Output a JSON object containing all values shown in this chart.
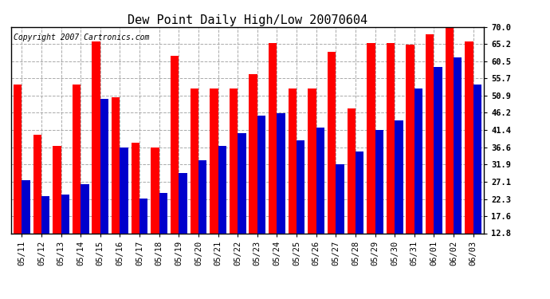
{
  "title": "Dew Point Daily High/Low 20070604",
  "copyright": "Copyright 2007 Cartronics.com",
  "dates": [
    "05/11",
    "05/12",
    "05/13",
    "05/14",
    "05/15",
    "05/16",
    "05/17",
    "05/18",
    "05/19",
    "05/20",
    "05/21",
    "05/22",
    "05/23",
    "05/24",
    "05/25",
    "05/26",
    "05/27",
    "05/28",
    "05/29",
    "05/30",
    "05/31",
    "06/01",
    "06/02",
    "06/03"
  ],
  "highs": [
    54.0,
    40.0,
    37.0,
    54.0,
    66.0,
    50.5,
    38.0,
    36.5,
    62.0,
    53.0,
    53.0,
    53.0,
    57.0,
    65.5,
    53.0,
    53.0,
    63.0,
    47.5,
    65.5,
    65.5,
    65.0,
    68.0,
    70.5,
    66.0
  ],
  "lows": [
    27.5,
    23.0,
    23.5,
    26.5,
    50.0,
    36.5,
    22.5,
    24.0,
    29.5,
    33.0,
    37.0,
    40.5,
    45.5,
    46.0,
    38.5,
    42.0,
    32.0,
    35.5,
    41.5,
    44.0,
    53.0,
    59.0,
    61.5,
    54.0
  ],
  "high_color": "#ff0000",
  "low_color": "#0000cc",
  "background_color": "#ffffff",
  "grid_color": "#aaaaaa",
  "yticks": [
    12.8,
    17.6,
    22.3,
    27.1,
    31.9,
    36.6,
    41.4,
    46.2,
    50.9,
    55.7,
    60.5,
    65.2,
    70.0
  ],
  "ymin": 12.8,
  "ymax": 70.0,
  "title_fontsize": 11,
  "copyright_fontsize": 7,
  "tick_fontsize": 7.5
}
